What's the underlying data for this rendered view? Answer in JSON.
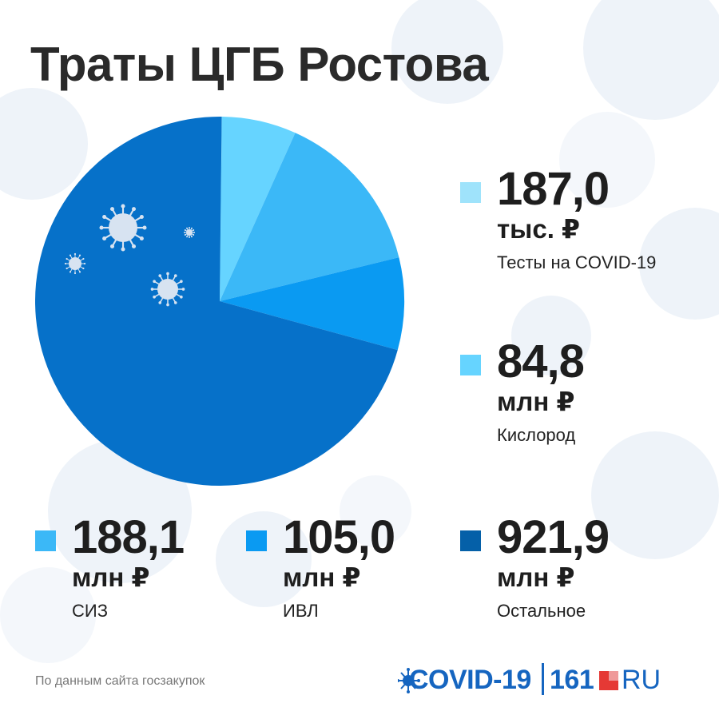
{
  "title": "Траты ЦГБ Ростова",
  "source": "По данным сайта госзакупок",
  "logo": {
    "covid_text": "COVID-19",
    "number_text": "161",
    "ru_text": "RU"
  },
  "colors": {
    "tests": "#9fe3fb",
    "oxygen": "#66d4ff",
    "siz": "#3bb8f7",
    "ivl": "#0a9af2",
    "other": "#0671c9",
    "legend_other": "#0560a8",
    "logo_blue": "#1565c0",
    "logo_red": "#e53935"
  },
  "legend": [
    {
      "id": "tests",
      "value": "187,0",
      "unit": "тыс. ₽",
      "label": "Тесты на COVID-19"
    },
    {
      "id": "oxygen",
      "value": "84,8",
      "unit": "млн ₽",
      "label": "Кислород"
    },
    {
      "id": "siz",
      "value": "188,1",
      "unit": "млн ₽",
      "label": "СИЗ"
    },
    {
      "id": "ivl",
      "value": "105,0",
      "unit": "млн ₽",
      "label": "ИВЛ"
    },
    {
      "id": "other",
      "value": "921,9",
      "unit": "млн ₽",
      "label": "Остальное"
    }
  ],
  "chart_data": {
    "type": "pie",
    "title": "Траты ЦГБ Ростова",
    "unit": "млн ₽",
    "categories": [
      "Тесты на COVID-19",
      "Кислород",
      "СИЗ",
      "ИВЛ",
      "Остальное"
    ],
    "values": [
      0.187,
      84.8,
      188.1,
      105.0,
      921.9
    ],
    "legend_position": "right-and-bottom"
  }
}
